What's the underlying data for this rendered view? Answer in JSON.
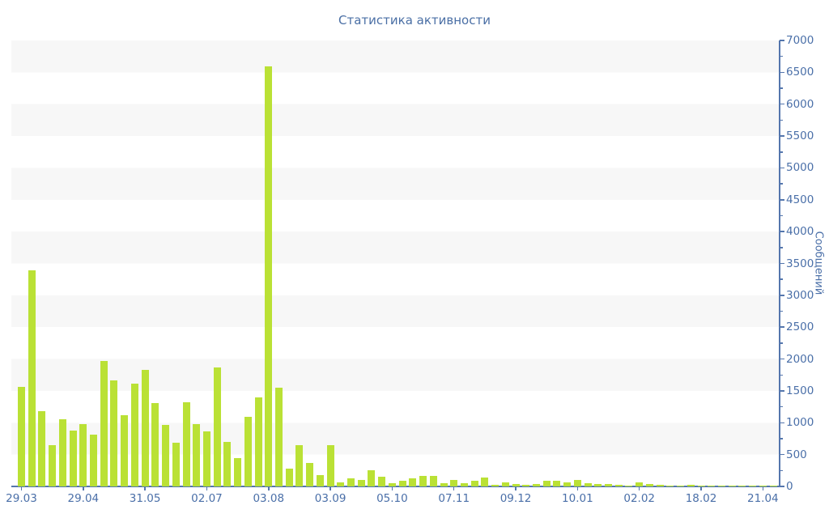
{
  "title": "Статистика активности",
  "y_axis_title": "Сообщений",
  "colors": {
    "bar": "#bae135",
    "axis_line": "#5476ad",
    "label_text": "#4a6fa8",
    "title_text": "#4a6fa5",
    "band": "#f7f7f7",
    "background": "#ffffff"
  },
  "chart_data": {
    "type": "bar",
    "title": "Статистика активности",
    "xlabel": "",
    "ylabel": "Сообщений",
    "ylim": [
      0,
      7000
    ],
    "y_major_tick_step": 500,
    "y_minor_tick_step": 250,
    "grid": "alternating horizontal bands of 500 units, gray band at top (6500-7000)",
    "legend": "none",
    "x_label_every_n_bars": 6,
    "x_tick_labels": [
      "29.03",
      "29.04",
      "31.05",
      "02.07",
      "03.08",
      "03.09",
      "05.10",
      "07.11",
      "09.12",
      "10.01",
      "02.02",
      "18.02",
      "21.04"
    ],
    "values": [
      1560,
      3390,
      1185,
      650,
      1050,
      880,
      980,
      810,
      1975,
      1670,
      1120,
      1610,
      1835,
      1315,
      960,
      690,
      1320,
      980,
      860,
      1870,
      700,
      450,
      1090,
      1400,
      6600,
      1555,
      275,
      650,
      370,
      175,
      650,
      70,
      130,
      105,
      260,
      150,
      55,
      90,
      130,
      160,
      165,
      55,
      105,
      55,
      90,
      140,
      30,
      70,
      35,
      25,
      40,
      85,
      85,
      60,
      100,
      50,
      40,
      40,
      30,
      15,
      60,
      40,
      25,
      15,
      15,
      20,
      15,
      10,
      15,
      10,
      15,
      10,
      15,
      15
    ]
  }
}
